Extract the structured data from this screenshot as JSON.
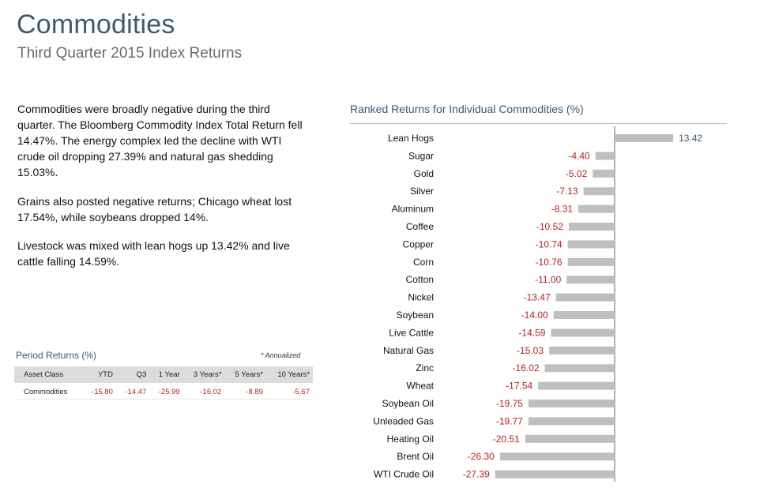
{
  "header": {
    "title": "Commodities",
    "subtitle": "Third Quarter 2015 Index Returns"
  },
  "commentary": [
    "Commodities were broadly negative during the third quarter. The Bloomberg Commodity Index Total Return fell 14.47%. The energy complex led the decline with WTI crude oil dropping 27.39% and natural gas shedding 15.03%.",
    "Grains also posted negative returns; Chicago wheat lost 17.54%, while soybeans dropped 14%.",
    "Livestock was mixed with lean hogs up 13.42% and live cattle falling 14.59%."
  ],
  "period_returns": {
    "title": "Period Returns (%)",
    "note": "* Annualized",
    "headers": [
      "Asset Class",
      "YTD",
      "Q3",
      "1 Year",
      "3 Years*",
      "5 Years*",
      "10 Years*"
    ],
    "row": [
      "Commodities",
      "-15.80",
      "-14.47",
      "-25.99",
      "-16.02",
      "-8.89",
      "-5.67"
    ]
  },
  "chart_data": {
    "type": "bar",
    "orientation": "horizontal",
    "title": "Ranked Returns for Individual Commodities (%)",
    "categories": [
      "Lean Hogs",
      "Sugar",
      "Gold",
      "Silver",
      "Aluminum",
      "Coffee",
      "Copper",
      "Corn",
      "Cotton",
      "Nickel",
      "Soybean",
      "Live Cattle",
      "Natural Gas",
      "Zinc",
      "Wheat",
      "Soybean Oil",
      "Unleaded Gas",
      "Heating Oil",
      "Brent Oil",
      "WTI Crude Oil"
    ],
    "values": [
      13.42,
      -4.4,
      -5.02,
      -7.13,
      -8.31,
      -10.52,
      -10.74,
      -10.76,
      -11.0,
      -13.47,
      -14.0,
      -14.59,
      -15.03,
      -16.02,
      -17.54,
      -19.75,
      -19.77,
      -20.51,
      -26.3,
      -27.39
    ],
    "labels": [
      "13.42",
      "-4.40",
      "-5.02",
      "-7.13",
      "-8.31",
      "-10.52",
      "-10.74",
      "-10.76",
      "-11.00",
      "-13.47",
      "-14.00",
      "-14.59",
      "-15.03",
      "-16.02",
      "-17.54",
      "-19.75",
      "-19.77",
      "-20.51",
      "-26.30",
      "-27.39"
    ],
    "bar_color": "#bfbfbf",
    "negative_label_color": "#b22222",
    "positive_label_color": "#3e5a6e"
  }
}
